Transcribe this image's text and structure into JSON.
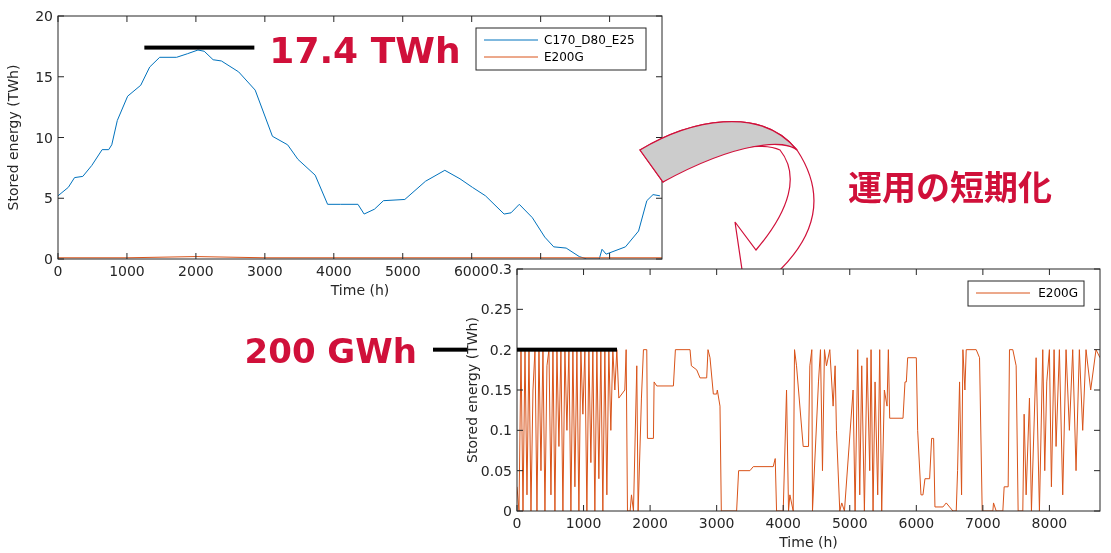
{
  "chart_data": [
    {
      "type": "line",
      "xlabel": "Time (h)",
      "ylabel": "Stored energy (TWh)",
      "xlim": [
        0,
        8760
      ],
      "ylim": [
        0,
        20
      ],
      "xticks": [
        0,
        1000,
        2000,
        3000,
        4000,
        5000,
        6000,
        {
          "value": 7000,
          "label": null
        },
        {
          "value": 8000,
          "label": null
        }
      ],
      "yticks": [
        0,
        5,
        10,
        15,
        20
      ],
      "legend": "top right",
      "grid": false,
      "series": [
        {
          "name": "C170_D80_E25",
          "color": "#0072bd",
          "x": [
            0,
            150,
            240,
            360,
            490,
            640,
            735,
            780,
            860,
            1010,
            1200,
            1330,
            1475,
            1720,
            1880,
            2030,
            2120,
            2250,
            2370,
            2620,
            2860,
            3110,
            3330,
            3480,
            3730,
            3910,
            4100,
            4350,
            4440,
            4590,
            4720,
            5030,
            5330,
            5610,
            5830,
            6010,
            6200,
            6470,
            6570,
            6690,
            6880,
            7060,
            7190,
            7370,
            7560,
            7670,
            7850,
            7890,
            7950,
            8230,
            8420,
            8540,
            8630,
            8730
          ],
          "values": [
            5.2,
            5.9,
            6.7,
            6.8,
            7.7,
            9.0,
            9.0,
            9.4,
            11.4,
            13.4,
            14.3,
            15.8,
            16.6,
            16.6,
            16.9,
            17.2,
            17.1,
            16.4,
            16.3,
            15.4,
            13.9,
            10.1,
            9.4,
            8.2,
            6.9,
            4.5,
            4.5,
            4.5,
            3.7,
            4.1,
            4.8,
            4.9,
            6.4,
            7.3,
            6.6,
            5.9,
            5.2,
            3.7,
            3.8,
            4.5,
            3.4,
            1.8,
            1.0,
            0.9,
            0.2,
            0,
            0,
            0.8,
            0.4,
            1.0,
            2.3,
            4.8,
            5.3,
            5.2
          ]
        },
        {
          "name": "E200G",
          "color": "#d95319",
          "x": [
            0,
            1000,
            2000,
            3000,
            4000,
            5000,
            6000,
            7000,
            8000,
            8760
          ],
          "values": [
            0.1,
            0.1,
            0.2,
            0.1,
            0.1,
            0.1,
            0.1,
            0.1,
            0.1,
            0.1
          ]
        }
      ],
      "annotations": [
        {
          "text": "17.4 TWh",
          "x": 2050,
          "y": 17.4
        },
        "運用の短期化"
      ]
    },
    {
      "type": "line",
      "xlabel": "Time (h)",
      "ylabel": "Stored energy (TWh)",
      "xlim": [
        0,
        8760
      ],
      "ylim": [
        0,
        0.3
      ],
      "xticks": [
        0,
        1000,
        2000,
        3000,
        4000,
        5000,
        6000,
        7000,
        8000
      ],
      "yticks": [
        0,
        0.05,
        0.1,
        0.15,
        0.2,
        0.25,
        0.3
      ],
      "legend": "top right",
      "grid": false,
      "series": [
        {
          "name": "E200G",
          "color": "#d95319",
          "x": [
            0,
            30,
            60,
            90,
            120,
            150,
            180,
            210,
            240,
            270,
            300,
            330,
            360,
            390,
            420,
            450,
            480,
            510,
            540,
            570,
            600,
            630,
            660,
            690,
            720,
            750,
            780,
            810,
            840,
            870,
            900,
            930,
            960,
            990,
            1020,
            1050,
            1080,
            1110,
            1140,
            1170,
            1200,
            1230,
            1260,
            1290,
            1320,
            1350,
            1380,
            1410,
            1440,
            1470,
            1500,
            1530,
            1620,
            1640,
            1660,
            1700,
            1720,
            1750,
            1800,
            1820,
            1870,
            1900,
            1950,
            1960,
            2050,
            2060,
            2100,
            2350,
            2380,
            2600,
            2620,
            2700,
            2750,
            2850,
            2870,
            2900,
            2950,
            3000,
            3010,
            3050,
            3070,
            3300,
            3330,
            3500,
            3550,
            3850,
            3880,
            3900,
            4000,
            4050,
            4080,
            4100,
            4150,
            4170,
            4200,
            4300,
            4380,
            4400,
            4430,
            4440,
            4530,
            4560,
            4590,
            4620,
            4650,
            4700,
            4750,
            4780,
            4800,
            4850,
            4880,
            4920,
            5050,
            5080,
            5120,
            5150,
            5180,
            5220,
            5260,
            5300,
            5320,
            5350,
            5380,
            5420,
            5450,
            5480,
            5520,
            5560,
            5580,
            5600,
            5800,
            5830,
            5850,
            5870,
            6000,
            6020,
            6070,
            6100,
            6130,
            6200,
            6230,
            6260,
            6280,
            6400,
            6450,
            6500,
            6550,
            6600,
            6620,
            6650,
            6680,
            6700,
            6730,
            6750,
            6900,
            6950,
            6990,
            7150,
            7160,
            7200,
            7300,
            7320,
            7380,
            7400,
            7450,
            7500,
            7530,
            7600,
            7620,
            7650,
            7700,
            7730,
            7800,
            7850,
            7900,
            7930,
            7960,
            8000,
            8030,
            8070,
            8100,
            8150,
            8200,
            8250,
            8300,
            8350,
            8400,
            8450,
            8500,
            8550,
            8620,
            8700,
            8760
          ],
          "values": [
            0.03,
            0,
            0.2,
            0,
            0.2,
            0.02,
            0.2,
            0,
            0.15,
            0.2,
            0,
            0.2,
            0.05,
            0.2,
            0,
            0.18,
            0.2,
            0.02,
            0.2,
            0,
            0.2,
            0.08,
            0.2,
            0,
            0.2,
            0.1,
            0.2,
            0,
            0.2,
            0.03,
            0.2,
            0,
            0.2,
            0.12,
            0.2,
            0,
            0.2,
            0.06,
            0.2,
            0,
            0.2,
            0.04,
            0.2,
            0,
            0.2,
            0.02,
            0.2,
            0.1,
            0.2,
            0.15,
            0.2,
            0.14,
            0.15,
            0.2,
            0,
            0,
            0.02,
            0,
            0.18,
            0,
            0.14,
            0.2,
            0.2,
            0.09,
            0.09,
            0.16,
            0.155,
            0.155,
            0.2,
            0.2,
            0.18,
            0.175,
            0.165,
            0.165,
            0.2,
            0.19,
            0.145,
            0.145,
            0.15,
            0.13,
            0,
            0,
            0.05,
            0.05,
            0.055,
            0.055,
            0.065,
            0,
            0,
            0.15,
            0,
            0.02,
            0,
            0.2,
            0.18,
            0.08,
            0.08,
            0.18,
            0.2,
            0,
            0.16,
            0.2,
            0.05,
            0.2,
            0.18,
            0.2,
            0.13,
            0.18,
            0.1,
            0,
            0.01,
            0,
            0.15,
            0,
            0.2,
            0.02,
            0.18,
            0,
            0.19,
            0.05,
            0.2,
            0,
            0.16,
            0.02,
            0.2,
            0,
            0.15,
            0.13,
            0.2,
            0.115,
            0.115,
            0.16,
            0.16,
            0.19,
            0.19,
            0.1,
            0.02,
            0.02,
            0.04,
            0.04,
            0.09,
            0.09,
            0.005,
            0.005,
            0.01,
            0.005,
            0,
            0,
            0.05,
            0.16,
            0.02,
            0.2,
            0.15,
            0.2,
            0.2,
            0.19,
            0,
            0,
            0.01,
            0,
            0,
            0.03,
            0.03,
            0.2,
            0.2,
            0.18,
            0,
            0,
            0.12,
            0.02,
            0.14,
            0,
            0.19,
            0,
            0.2,
            0.05,
            0.16,
            0.2,
            0.03,
            0.2,
            0.08,
            0.2,
            0.02,
            0.2,
            0.1,
            0.2,
            0.05,
            0.2,
            0.1,
            0.2,
            0.15,
            0.2,
            0.19
          ]
        }
      ],
      "annotations": [
        {
          "text": "200 GWh",
          "x": 0,
          "y": 0.2
        }
      ]
    }
  ]
}
